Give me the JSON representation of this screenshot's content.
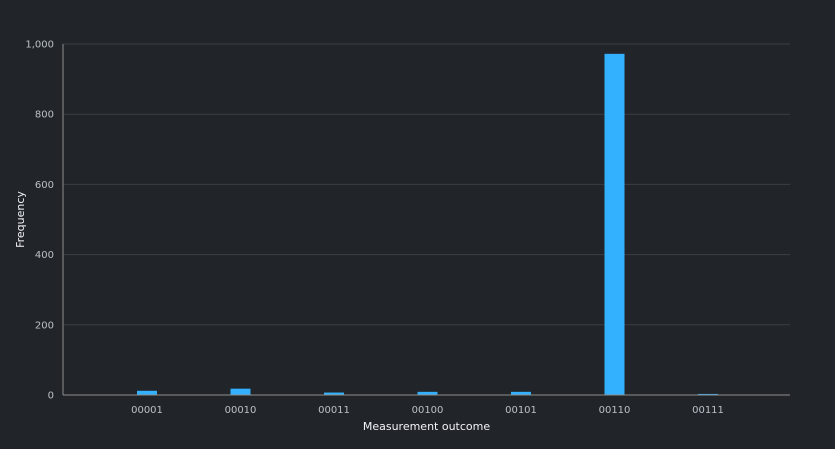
{
  "chart_data": {
    "type": "bar",
    "categories": [
      "00001",
      "00010",
      "00011",
      "00100",
      "00101",
      "00110",
      "00111"
    ],
    "values": [
      12,
      18,
      7,
      9,
      9,
      972,
      3
    ],
    "xlabel": "Measurement outcome",
    "ylabel": "Frequency",
    "ylim": [
      0,
      1000
    ],
    "yticks": [
      0,
      200,
      400,
      600,
      800,
      1000
    ],
    "ytick_labels": [
      "0",
      "200",
      "400",
      "600",
      "800",
      "1,000"
    ],
    "grid": "horizontal",
    "bar_color": "#33b1ff",
    "grid_color": "#3a3f44",
    "axis_color": "#8d8d8d",
    "background": "#212529"
  }
}
